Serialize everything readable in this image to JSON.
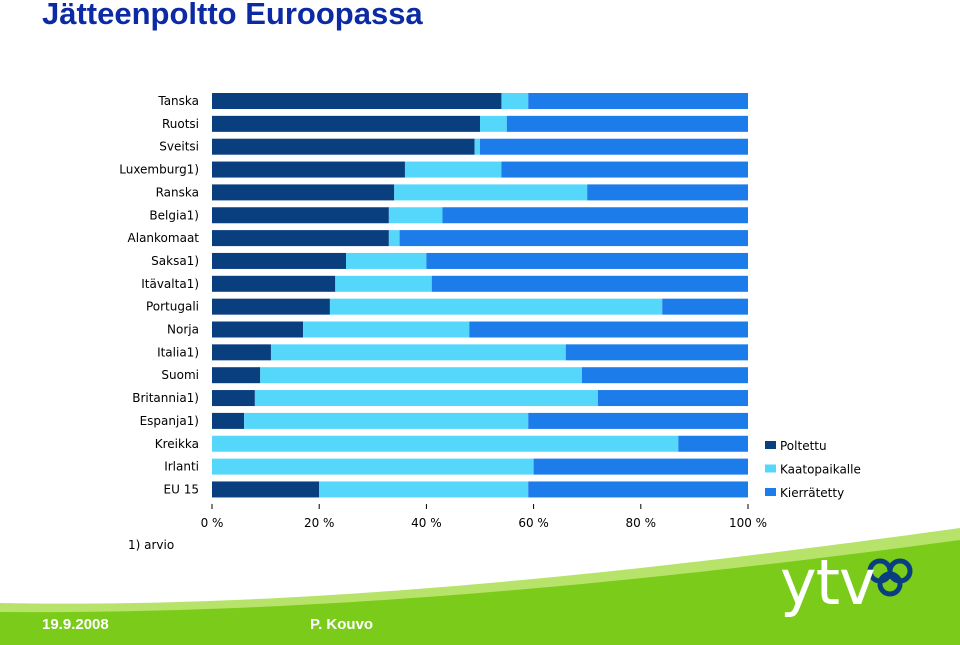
{
  "page": {
    "title": "Jätteenpoltto Euroopassa",
    "footer_date": "19.9.2008",
    "footer_author": "P. Kouvo",
    "logo_text": "ytv"
  },
  "chart_data": {
    "type": "bar",
    "orientation": "horizontal",
    "stacked": true,
    "title": "",
    "xlabel": "",
    "ylabel": "",
    "xlim": [
      0,
      100
    ],
    "x_ticks": [
      "0 %",
      "20 %",
      "40 %",
      "60 %",
      "80 %",
      "100 %"
    ],
    "grid": false,
    "legend_position": "right",
    "footnote": "1) arvio",
    "categories": [
      "Tanska",
      "Ruotsi",
      "Sveitsi",
      "Luxemburg1)",
      "Ranska",
      "Belgia1)",
      "Alankomaat",
      "Saksa1)",
      "Itävalta1)",
      "Portugali",
      "Norja",
      "Italia1)",
      "Suomi",
      "Britannia1)",
      "Espanja1)",
      "Kreikka",
      "Irlanti",
      "EU 15"
    ],
    "series": [
      {
        "name": "Poltettu",
        "color": "#0a3f7f",
        "values": [
          54,
          50,
          49,
          36,
          34,
          33,
          33,
          25,
          23,
          22,
          17,
          11,
          9,
          8,
          6,
          0,
          0,
          20
        ]
      },
      {
        "name": "Kaatopaikalle",
        "color": "#55d7fb",
        "values": [
          5,
          5,
          1,
          18,
          36,
          10,
          2,
          15,
          18,
          62,
          31,
          55,
          60,
          64,
          53,
          87,
          60,
          39
        ]
      },
      {
        "name": "Kierrätetty",
        "color": "#1b7cea",
        "values": [
          41,
          45,
          50,
          46,
          30,
          57,
          65,
          60,
          59,
          16,
          52,
          34,
          31,
          28,
          41,
          13,
          40,
          41
        ]
      }
    ]
  }
}
